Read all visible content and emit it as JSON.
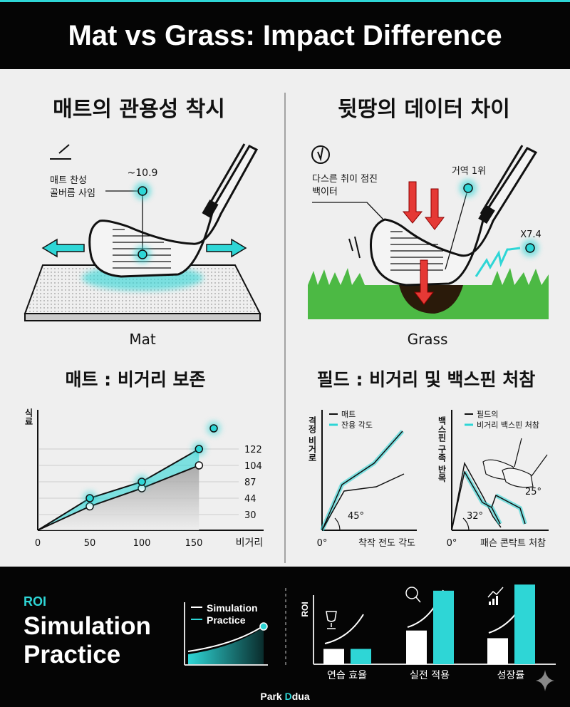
{
  "title": "Mat vs Grass: Impact Difference",
  "colors": {
    "accent": "#2ed6d6",
    "red": "#e53935",
    "grass": "#4cb944",
    "dark": "#050505",
    "panel": "#efefef"
  },
  "left": {
    "heading": "매트의 관용성 착시",
    "callout_line1": "매트 찬성",
    "callout_line2": "골버름 사임",
    "value": "~10.9",
    "surface_label": "Mat",
    "subheading": "매트 : 비거리 보존"
  },
  "right": {
    "heading": "뒷땅의 데이터 차이",
    "callout_line1": "다스른 취이 점진",
    "callout_line2": "백이터",
    "value_top": "거역 1위",
    "value_right": "X7.4",
    "surface_label": "Grass",
    "subheading": "필드 : 비거리 및 백스핀 처참"
  },
  "chart_data": [
    {
      "type": "line",
      "ylabel": "식료",
      "xlabel": "비거리",
      "x_ticks": [
        "0",
        "50",
        "100",
        "150"
      ],
      "y_ticks": [
        "30",
        "44",
        "87",
        "104",
        "122"
      ],
      "x": [
        0,
        50,
        100,
        155
      ],
      "series": [
        {
          "values": [
            0,
            44,
            87,
            122
          ],
          "color": "#2ed6d6"
        },
        {
          "values": [
            0,
            37,
            70,
            104
          ],
          "color": "#111111"
        }
      ]
    },
    {
      "type": "line",
      "ylabel": "격정 비거로",
      "xlabel": "착작 전도 각도",
      "x_origin_label": "0°",
      "legend": [
        "매트",
        "잔용 각도"
      ],
      "angle_label": "45°"
    },
    {
      "type": "line",
      "ylabel": "백스핀 구족 반목",
      "xlabel": "패슨 콘탁트 처참",
      "x_origin_label": "0°",
      "legend": [
        "필드의",
        "비거리 백스핀 처참"
      ],
      "angle_label": "32°",
      "angle_label_2": "25°"
    },
    {
      "type": "bar",
      "ylabel": "ROI",
      "categories": [
        "연습 효율",
        "실전 적용",
        "성장률"
      ],
      "series": [
        {
          "values": [
            1,
            2.2,
            1.7
          ],
          "color": "#ffffff"
        },
        {
          "values": [
            1,
            4.8,
            5.2
          ],
          "color": "#2ed6d6"
        }
      ]
    }
  ],
  "bottom": {
    "roi_label": "ROI",
    "title_line1": "Simulation",
    "title_line2": "Practice",
    "legend_simulation": "Simulation",
    "legend_practice": "Practice",
    "brand_part1": "Park ",
    "brand_part2": "D",
    "brand_part3": "dua"
  }
}
